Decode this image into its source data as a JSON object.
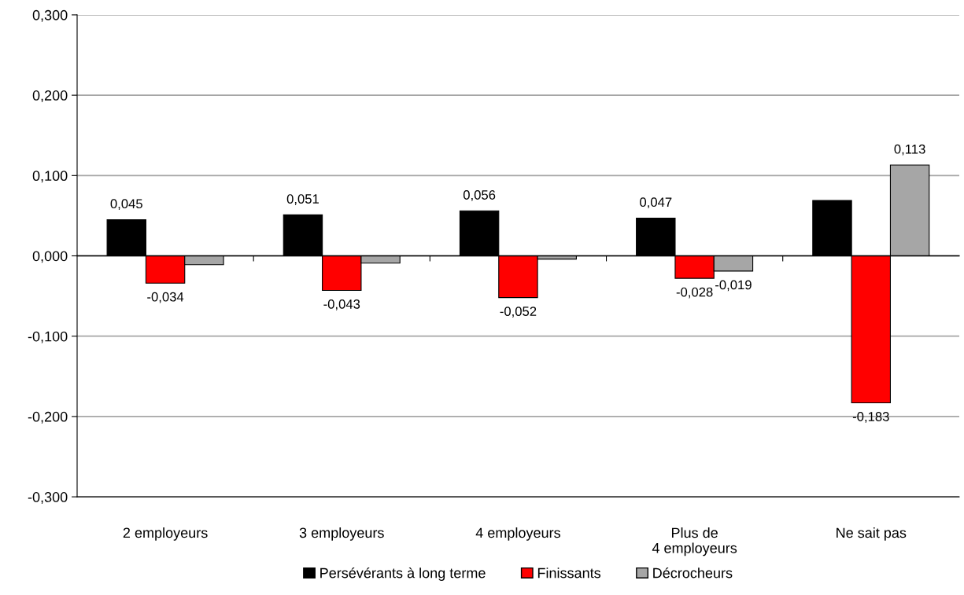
{
  "chart_data": {
    "type": "bar",
    "categories": [
      "2 employeurs",
      "3 employeurs",
      "4 employeurs",
      "Plus de\n4 employeurs",
      "Ne sait pas"
    ],
    "series": [
      {
        "name": "Persévérants à long terme",
        "color": "#000000",
        "values": [
          0.045,
          0.051,
          0.056,
          0.047,
          0.069
        ],
        "value_labels": [
          "0,045",
          "0,051",
          "0,056",
          "0,047",
          null
        ]
      },
      {
        "name": "Finissants",
        "color": "#ff0000",
        "values": [
          -0.034,
          -0.043,
          -0.052,
          -0.028,
          -0.183
        ],
        "value_labels": [
          "-0,034",
          "-0,043",
          "-0,052",
          "-0,028",
          "-0,183"
        ]
      },
      {
        "name": "Décrocheurs",
        "color": "#a6a6a6",
        "values": [
          -0.011,
          -0.009,
          -0.004,
          -0.019,
          0.113
        ],
        "value_labels": [
          null,
          null,
          null,
          "-0,019",
          "0,113"
        ]
      }
    ],
    "ylim": [
      -0.3,
      0.3
    ],
    "yticks": [
      {
        "value": -0.3,
        "label": "-0,300"
      },
      {
        "value": -0.2,
        "label": "-0,200"
      },
      {
        "value": -0.1,
        "label": "-0,100"
      },
      {
        "value": 0,
        "label": "0,000"
      },
      {
        "value": 0.1,
        "label": "0,100"
      },
      {
        "value": 0.2,
        "label": "0,200"
      },
      {
        "value": 0.3,
        "label": "0,300"
      }
    ],
    "grid": "y",
    "legend": "bottom"
  }
}
